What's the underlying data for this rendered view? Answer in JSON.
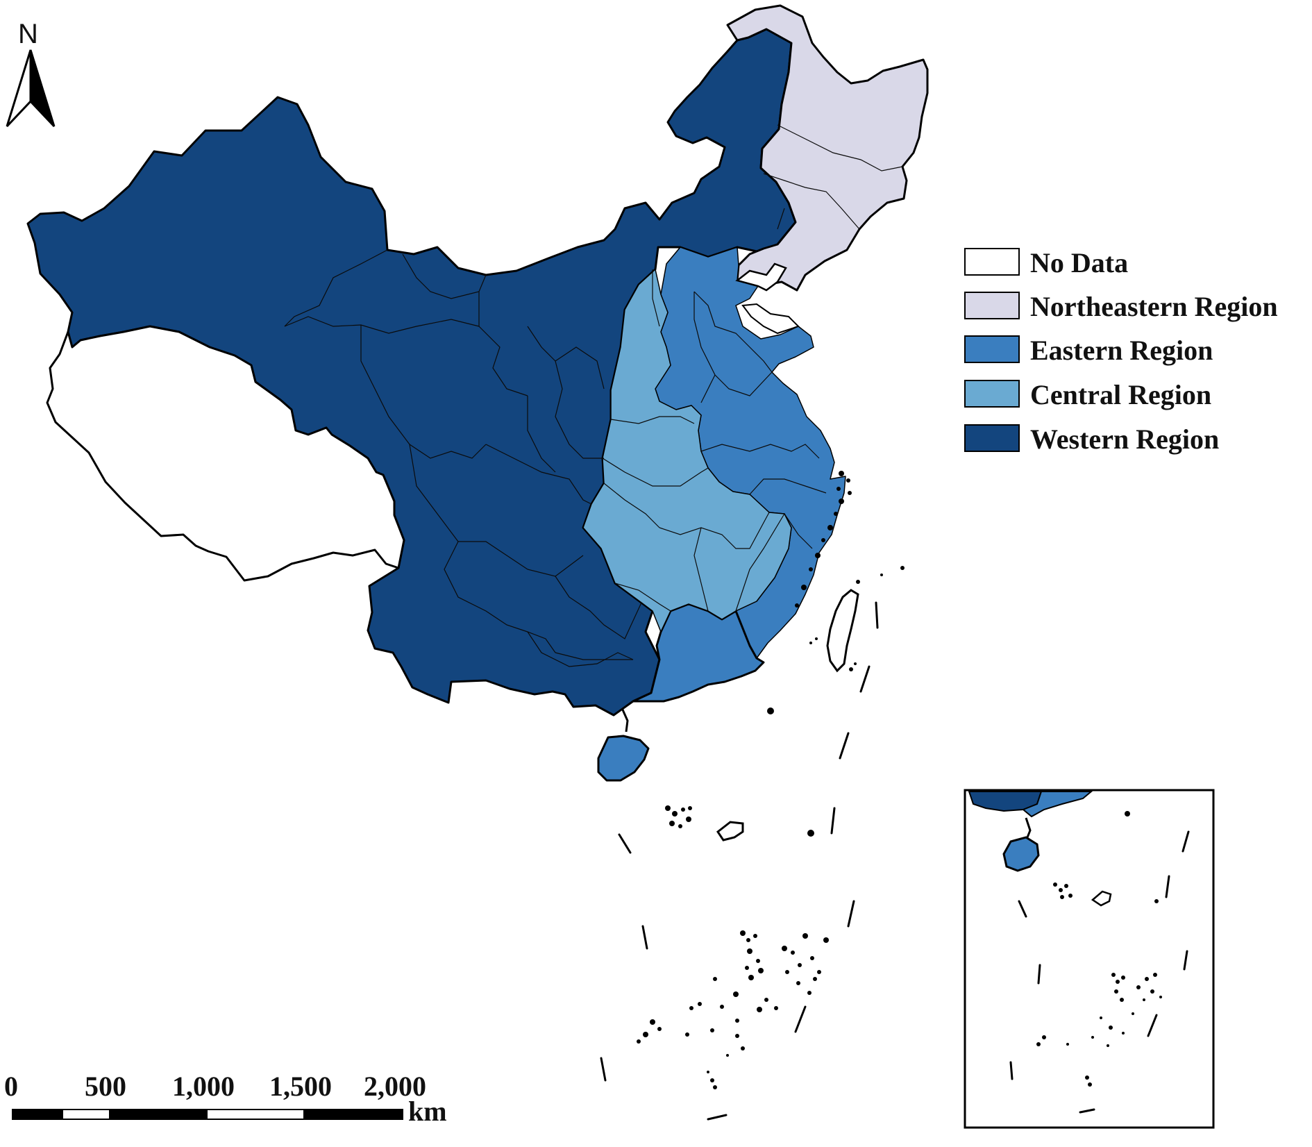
{
  "north_label": "N",
  "legend": {
    "items": [
      {
        "label": "No Data",
        "color": "#ffffff"
      },
      {
        "label": "Northeastern Region",
        "color": "#d9d8e8"
      },
      {
        "label": "Eastern Region",
        "color": "#3a7ebf"
      },
      {
        "label": "Central Region",
        "color": "#6aaad2"
      },
      {
        "label": "Western Region",
        "color": "#13457e"
      }
    ]
  },
  "scale_bar": {
    "ticks": [
      "0",
      "500",
      "1,000",
      "1,500",
      "2,000"
    ],
    "unit": "km"
  },
  "colors": {
    "no_data": "#ffffff",
    "northeastern": "#d9d8e8",
    "eastern": "#3a7ebf",
    "central": "#6aaad2",
    "western": "#13457e",
    "border": "#000000"
  }
}
